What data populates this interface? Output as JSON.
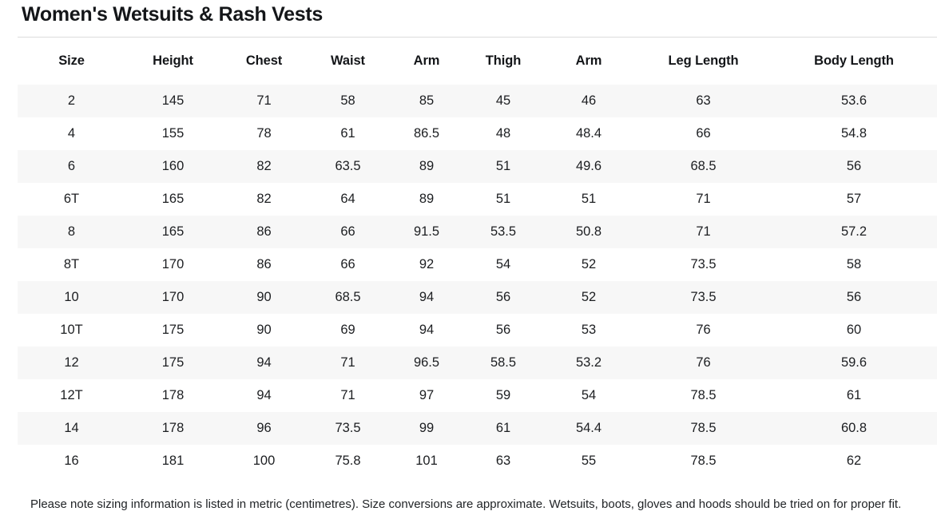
{
  "page": {
    "title": "Women's Wetsuits & Rash Vests",
    "note": "Please note sizing information is listed in metric (centimetres). Size conversions are approximate. Wetsuits, boots, gloves and hoods should be tried on for proper fit."
  },
  "table": {
    "columns": [
      "Size",
      "Height",
      "Chest",
      "Waist",
      "Arm",
      "Thigh",
      "Arm",
      "Leg Length",
      "Body Length"
    ],
    "rows": [
      [
        "2",
        "145",
        "71",
        "58",
        "85",
        "45",
        "46",
        "63",
        "53.6"
      ],
      [
        "4",
        "155",
        "78",
        "61",
        "86.5",
        "48",
        "48.4",
        "66",
        "54.8"
      ],
      [
        "6",
        "160",
        "82",
        "63.5",
        "89",
        "51",
        "49.6",
        "68.5",
        "56"
      ],
      [
        "6T",
        "165",
        "82",
        "64",
        "89",
        "51",
        "51",
        "71",
        "57"
      ],
      [
        "8",
        "165",
        "86",
        "66",
        "91.5",
        "53.5",
        "50.8",
        "71",
        "57.2"
      ],
      [
        "8T",
        "170",
        "86",
        "66",
        "92",
        "54",
        "52",
        "73.5",
        "58"
      ],
      [
        "10",
        "170",
        "90",
        "68.5",
        "94",
        "56",
        "52",
        "73.5",
        "56"
      ],
      [
        "10T",
        "175",
        "90",
        "69",
        "94",
        "56",
        "53",
        "76",
        "60"
      ],
      [
        "12",
        "175",
        "94",
        "71",
        "96.5",
        "58.5",
        "53.2",
        "76",
        "59.6"
      ],
      [
        "12T",
        "178",
        "94",
        "71",
        "97",
        "59",
        "54",
        "78.5",
        "61"
      ],
      [
        "14",
        "178",
        "96",
        "73.5",
        "99",
        "61",
        "54.4",
        "78.5",
        "60.8"
      ],
      [
        "16",
        "181",
        "100",
        "75.8",
        "101",
        "63",
        "55",
        "78.5",
        "62"
      ]
    ]
  },
  "colors": {
    "title_text": "#141619",
    "body_text": "#1c1e21",
    "row_stripe": "#f7f7f7",
    "divider": "#dcdcdc",
    "background": "#ffffff"
  },
  "units": "centimetres"
}
